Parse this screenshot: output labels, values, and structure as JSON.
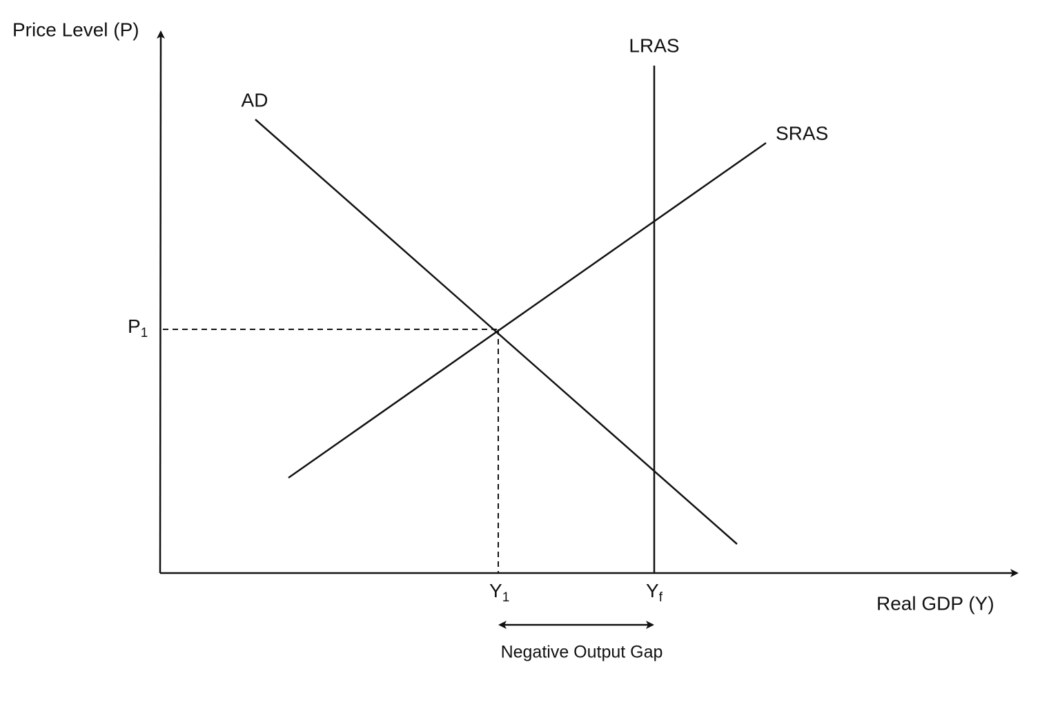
{
  "axes": {
    "y_label": "Price Level (P)",
    "x_label": "Real GDP (Y)"
  },
  "curves": {
    "ad": "AD",
    "sras": "SRAS",
    "lras": "LRAS"
  },
  "markers": {
    "p1": {
      "base": "P",
      "sub": "1"
    },
    "y1": {
      "base": "Y",
      "sub": "1"
    },
    "yf": {
      "base": "Y",
      "sub": "f"
    }
  },
  "annotation": "Negative Output Gap"
}
